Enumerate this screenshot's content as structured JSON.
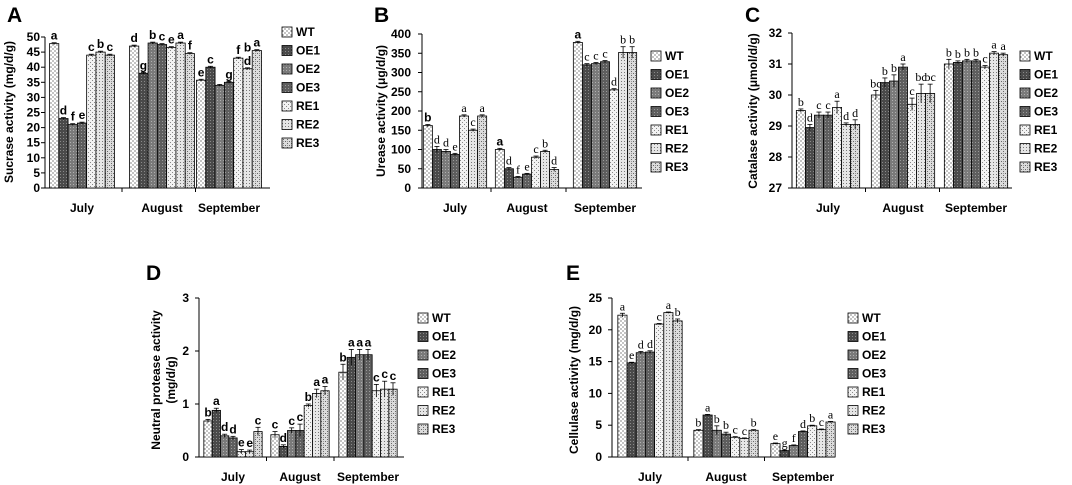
{
  "figure": {
    "width": 1072,
    "height": 485
  },
  "colors": {
    "WT": "#ffffff",
    "OE1": "#5a5a5a",
    "OE2": "#848484",
    "OE3": "#6a6a6a",
    "RE1": "#ececec",
    "RE2": "#dedede",
    "RE3": "#d0d0d0",
    "axis": "#000000",
    "background": "#ffffff"
  },
  "chart_data": [
    {
      "type": "bar",
      "panel": "A",
      "ylabel": "Sucrase activity (mg/d/g)",
      "ylim": [
        0,
        50
      ],
      "yticks": [
        0,
        5,
        10,
        15,
        20,
        25,
        30,
        35,
        40,
        45,
        50
      ],
      "categories": [
        "July",
        "August",
        "September"
      ],
      "letter_style": "bold",
      "series": [
        {
          "name": "WT",
          "values": [
            47.8,
            47.0,
            35.7
          ],
          "errors": [
            0.3,
            0.3,
            0.3
          ],
          "letters": [
            "a",
            "d",
            "e"
          ]
        },
        {
          "name": "OE1",
          "values": [
            23.0,
            38.0,
            40.0
          ],
          "errors": [
            0.3,
            0.3,
            0.3
          ],
          "letters": [
            "d",
            "g",
            "c"
          ]
        },
        {
          "name": "OE2",
          "values": [
            21.0,
            48.0,
            34.0
          ],
          "errors": [
            0.3,
            0.3,
            0.3
          ],
          "letters": [
            "f",
            "b",
            ""
          ]
        },
        {
          "name": "OE3",
          "values": [
            21.5,
            47.5,
            35.0
          ],
          "errors": [
            0.3,
            0.3,
            0.3
          ],
          "letters": [
            "e",
            "c",
            "g"
          ]
        },
        {
          "name": "RE1",
          "values": [
            44.0,
            46.5,
            43.0
          ],
          "errors": [
            0.3,
            0.3,
            0.3
          ],
          "letters": [
            "c",
            "e",
            "f"
          ]
        },
        {
          "name": "RE2",
          "values": [
            45.0,
            48.0,
            39.5
          ],
          "errors": [
            0.3,
            0.3,
            0.3
          ],
          "letters": [
            "b",
            "a",
            "d"
          ]
        },
        {
          "name": "RE3",
          "values": [
            44.0,
            44.5,
            45.5
          ],
          "errors": [
            0.3,
            0.3,
            0.3
          ],
          "letters": [
            "c",
            "f",
            "a"
          ]
        }
      ],
      "extra_letters": [
        {
          "category": 2,
          "series": 5,
          "text": "b"
        }
      ]
    },
    {
      "type": "bar",
      "panel": "B",
      "ylabel": "Urease activity (μg/d/g)",
      "ylim": [
        0,
        400
      ],
      "yticks": [
        0,
        50,
        100,
        150,
        200,
        250,
        300,
        350,
        400
      ],
      "categories": [
        "July",
        "August",
        "September"
      ],
      "letter_style": "mixed",
      "series": [
        {
          "name": "WT",
          "values": [
            162,
            100,
            378
          ],
          "errors": [
            3,
            3,
            3
          ],
          "letters": [
            "b",
            "a",
            "a"
          ]
        },
        {
          "name": "OE1",
          "values": [
            100,
            50,
            320
          ],
          "errors": [
            8,
            3,
            3
          ],
          "letters": [
            "d",
            "d",
            "c"
          ]
        },
        {
          "name": "OE2",
          "values": [
            95,
            28,
            323
          ],
          "errors": [
            5,
            2,
            3
          ],
          "letters": [
            "d",
            "f",
            "c"
          ]
        },
        {
          "name": "OE3",
          "values": [
            87,
            36,
            328
          ],
          "errors": [
            3,
            2,
            3
          ],
          "letters": [
            "e",
            "e",
            "c"
          ]
        },
        {
          "name": "RE1",
          "values": [
            187,
            80,
            255
          ],
          "errors": [
            3,
            3,
            3
          ],
          "letters": [
            "a",
            "c",
            "d"
          ]
        },
        {
          "name": "RE2",
          "values": [
            150,
            95,
            352
          ],
          "errors": [
            3,
            3,
            15
          ],
          "letters": [
            "c",
            "b",
            "b"
          ]
        },
        {
          "name": "RE3",
          "values": [
            187,
            48,
            352
          ],
          "errors": [
            3,
            5,
            15
          ],
          "letters": [
            "a",
            "d",
            "b"
          ]
        }
      ]
    },
    {
      "type": "bar",
      "panel": "C",
      "ylabel": "Catalase activity (μmol/d/g)",
      "ylim": [
        27,
        32
      ],
      "yticks": [
        27,
        28,
        29,
        30,
        31,
        32
      ],
      "categories": [
        "July",
        "August",
        "September"
      ],
      "letter_style": "serif",
      "series": [
        {
          "name": "WT",
          "values": [
            29.5,
            30.0,
            31.0
          ],
          "errors": [
            0.05,
            0.15,
            0.15
          ],
          "letters": [
            "b",
            "bc",
            "b"
          ]
        },
        {
          "name": "OE1",
          "values": [
            28.95,
            30.4,
            31.05
          ],
          "errors": [
            0.1,
            0.15,
            0.05
          ],
          "letters": [
            "d",
            "b",
            "b"
          ]
        },
        {
          "name": "OE2",
          "values": [
            29.35,
            30.45,
            31.1
          ],
          "errors": [
            0.1,
            0.2,
            0.05
          ],
          "letters": [
            "c",
            "b",
            "b"
          ]
        },
        {
          "name": "OE3",
          "values": [
            29.35,
            30.9,
            31.1
          ],
          "errors": [
            0.1,
            0.1,
            0.05
          ],
          "letters": [
            "c",
            "a",
            "b"
          ]
        },
        {
          "name": "RE1",
          "values": [
            29.6,
            29.7,
            30.9
          ],
          "errors": [
            0.2,
            0.2,
            0.05
          ],
          "letters": [
            "a",
            "c",
            "c"
          ]
        },
        {
          "name": "RE2",
          "values": [
            29.05,
            30.05,
            31.35
          ],
          "errors": [
            0.05,
            0.3,
            0.05
          ],
          "letters": [
            "d",
            "bc",
            "a"
          ]
        },
        {
          "name": "RE3",
          "values": [
            29.05,
            30.05,
            31.3
          ],
          "errors": [
            0.15,
            0.3,
            0.05
          ],
          "letters": [
            "d",
            "bc",
            "a"
          ]
        }
      ]
    },
    {
      "type": "bar",
      "panel": "D",
      "ylabel": "Neutral protease activity (mg/d/g)",
      "ylabel_lines": [
        "Neutral protease activity",
        "(mg/d/g)"
      ],
      "ylim": [
        0,
        3
      ],
      "yticks": [
        0,
        1,
        2,
        3
      ],
      "categories": [
        "July",
        "August",
        "September"
      ],
      "letter_style": "bold",
      "series": [
        {
          "name": "WT",
          "values": [
            0.68,
            0.42,
            1.6
          ],
          "errors": [
            0.03,
            0.06,
            0.15
          ],
          "letters": [
            "b",
            "c",
            "b"
          ]
        },
        {
          "name": "OE1",
          "values": [
            0.88,
            0.2,
            1.88
          ],
          "errors": [
            0.04,
            0.03,
            0.15
          ],
          "letters": [
            "a",
            "d",
            "a"
          ]
        },
        {
          "name": "OE2",
          "values": [
            0.4,
            0.5,
            1.93
          ],
          "errors": [
            0.03,
            0.05,
            0.1
          ],
          "letters": [
            "d",
            "c",
            "a"
          ]
        },
        {
          "name": "OE3",
          "values": [
            0.36,
            0.5,
            1.93
          ],
          "errors": [
            0.03,
            0.12,
            0.1
          ],
          "letters": [
            "d",
            "c",
            "a"
          ]
        },
        {
          "name": "RE1",
          "values": [
            0.1,
            0.97,
            1.25
          ],
          "errors": [
            0.04,
            0.03,
            0.12
          ],
          "letters": [
            "e",
            "b",
            "c"
          ]
        },
        {
          "name": "RE2",
          "values": [
            0.1,
            1.2,
            1.28
          ],
          "errors": [
            0.03,
            0.08,
            0.15
          ],
          "letters": [
            "e",
            "a",
            "c"
          ]
        },
        {
          "name": "RE3",
          "values": [
            0.48,
            1.25,
            1.28
          ],
          "errors": [
            0.08,
            0.08,
            0.12
          ],
          "letters": [
            "c",
            "a",
            "c"
          ]
        }
      ]
    },
    {
      "type": "bar",
      "panel": "E",
      "ylabel": "Cellulase activity (mg/d/g)",
      "ylim": [
        0,
        25
      ],
      "yticks": [
        0,
        5,
        10,
        15,
        20,
        25
      ],
      "categories": [
        "July",
        "August",
        "September"
      ],
      "letter_style": "serif",
      "series": [
        {
          "name": "WT",
          "values": [
            22.3,
            4.2,
            2.1
          ],
          "errors": [
            0.3,
            0.1,
            0.1
          ],
          "letters": [
            "a",
            "b",
            "e"
          ]
        },
        {
          "name": "OE1",
          "values": [
            14.8,
            6.6,
            1.0
          ],
          "errors": [
            0.1,
            0.1,
            0.1
          ],
          "letters": [
            "e",
            "a",
            "g"
          ]
        },
        {
          "name": "OE2",
          "values": [
            16.4,
            4.2,
            1.8
          ],
          "errors": [
            0.2,
            0.7,
            0.1
          ],
          "letters": [
            "d",
            "b",
            "f"
          ]
        },
        {
          "name": "OE3",
          "values": [
            16.5,
            3.6,
            4.0
          ],
          "errors": [
            0.2,
            0.3,
            0.1
          ],
          "letters": [
            "d",
            "b",
            "d"
          ]
        },
        {
          "name": "RE1",
          "values": [
            20.9,
            3.1,
            4.9
          ],
          "errors": [
            0.1,
            0.1,
            0.1
          ],
          "letters": [
            "c",
            "c",
            "b"
          ]
        },
        {
          "name": "RE2",
          "values": [
            22.7,
            2.9,
            4.3
          ],
          "errors": [
            0.1,
            0.1,
            0.1
          ],
          "letters": [
            "a",
            "c",
            "c"
          ]
        },
        {
          "name": "RE3",
          "values": [
            21.4,
            4.2,
            5.5
          ],
          "errors": [
            0.3,
            0.1,
            0.1
          ],
          "letters": [
            "b",
            "b",
            "a"
          ]
        }
      ]
    }
  ]
}
